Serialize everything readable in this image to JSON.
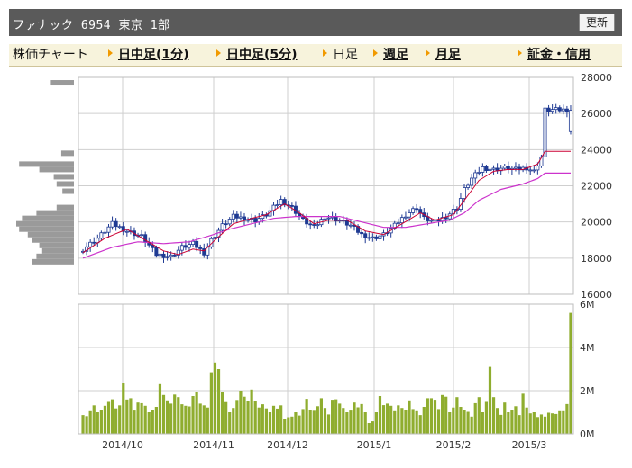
{
  "header": {
    "title": "ファナック 6954 東京 1部",
    "refresh_label": "更新"
  },
  "nav": {
    "chart_label": "株価チャート",
    "items": [
      {
        "label": "日中足(1分)",
        "kind": "link"
      },
      {
        "label": "日中足(5分)",
        "kind": "link"
      },
      {
        "label": "日足",
        "kind": "current"
      },
      {
        "label": "週足",
        "kind": "link"
      },
      {
        "label": "月足",
        "kind": "link"
      },
      {
        "label": "証金・信用",
        "kind": "link"
      }
    ]
  },
  "colors": {
    "candle": "#1f3a93",
    "ma_short": "#cc0033",
    "ma_long": "#cc33cc",
    "volume": "#8fad2f",
    "volume_profile": "#9a9a9a",
    "grid": "#cfcfcf"
  },
  "chart_data": [
    {
      "type": "candlestick",
      "title": "",
      "y_ticks": [
        "28000",
        "26000",
        "24000",
        "22000",
        "20000",
        "18000",
        "16000"
      ],
      "ylim": [
        16000,
        28000
      ],
      "x_ticks": [
        "2014/10",
        "2014/11",
        "2014/12",
        "2015/1",
        "2015/2",
        "2015/3"
      ],
      "close_anchors": [
        [
          0,
          18500
        ],
        [
          4,
          19100
        ],
        [
          8,
          19900
        ],
        [
          12,
          19500
        ],
        [
          16,
          19200
        ],
        [
          20,
          18200
        ],
        [
          24,
          18100
        ],
        [
          27,
          18600
        ],
        [
          30,
          18800
        ],
        [
          33,
          18300
        ],
        [
          35,
          19000
        ],
        [
          38,
          19800
        ],
        [
          41,
          20300
        ],
        [
          44,
          20200
        ],
        [
          47,
          20100
        ],
        [
          50,
          20400
        ],
        [
          54,
          21200
        ],
        [
          57,
          20800
        ],
        [
          60,
          20100
        ],
        [
          63,
          19700
        ],
        [
          66,
          20300
        ],
        [
          70,
          20100
        ],
        [
          73,
          19800
        ],
        [
          76,
          19300
        ],
        [
          79,
          19100
        ],
        [
          82,
          19300
        ],
        [
          85,
          19800
        ],
        [
          88,
          20400
        ],
        [
          91,
          20800
        ],
        [
          93,
          20200
        ],
        [
          96,
          20000
        ],
        [
          99,
          20300
        ],
        [
          102,
          20800
        ],
        [
          104,
          21800
        ],
        [
          106,
          22400
        ],
        [
          109,
          23000
        ],
        [
          112,
          22900
        ],
        [
          115,
          23000
        ],
        [
          118,
          22900
        ],
        [
          121,
          23000
        ],
        [
          123,
          22800
        ],
        [
          125,
          23600
        ],
        [
          126,
          26200
        ]
      ],
      "ma_short_anchors": [
        [
          0,
          18300
        ],
        [
          6,
          19100
        ],
        [
          12,
          19600
        ],
        [
          17,
          19000
        ],
        [
          22,
          18400
        ],
        [
          26,
          18200
        ],
        [
          30,
          18500
        ],
        [
          33,
          18400
        ],
        [
          36,
          19000
        ],
        [
          41,
          19900
        ],
        [
          46,
          20200
        ],
        [
          50,
          20400
        ],
        [
          55,
          21000
        ],
        [
          59,
          20500
        ],
        [
          63,
          19900
        ],
        [
          67,
          20100
        ],
        [
          72,
          20100
        ],
        [
          77,
          19500
        ],
        [
          82,
          19300
        ],
        [
          87,
          19900
        ],
        [
          92,
          20500
        ],
        [
          96,
          20100
        ],
        [
          101,
          20400
        ],
        [
          104,
          21200
        ],
        [
          108,
          22300
        ],
        [
          112,
          22800
        ],
        [
          116,
          22900
        ],
        [
          120,
          22900
        ],
        [
          124,
          23200
        ],
        [
          126,
          23900
        ]
      ],
      "ma_long_anchors": [
        [
          0,
          18000
        ],
        [
          8,
          18600
        ],
        [
          15,
          18900
        ],
        [
          22,
          18800
        ],
        [
          29,
          18900
        ],
        [
          34,
          19200
        ],
        [
          40,
          19600
        ],
        [
          46,
          19900
        ],
        [
          52,
          20200
        ],
        [
          58,
          20300
        ],
        [
          64,
          20300
        ],
        [
          70,
          20300
        ],
        [
          76,
          20000
        ],
        [
          82,
          19700
        ],
        [
          88,
          19700
        ],
        [
          94,
          19900
        ],
        [
          100,
          20100
        ],
        [
          104,
          20500
        ],
        [
          108,
          21200
        ],
        [
          114,
          21800
        ],
        [
          120,
          22100
        ],
        [
          124,
          22400
        ],
        [
          126,
          22700
        ]
      ],
      "volume_profile_levels": [
        [
          27700,
          0.4
        ],
        [
          23800,
          0.22
        ],
        [
          23200,
          0.95
        ],
        [
          22900,
          0.6
        ],
        [
          22500,
          0.35
        ],
        [
          22100,
          0.3
        ],
        [
          21700,
          0.2
        ],
        [
          20800,
          0.3
        ],
        [
          20500,
          0.65
        ],
        [
          20200,
          0.9
        ],
        [
          19900,
          1.0
        ],
        [
          19600,
          0.95
        ],
        [
          19300,
          0.8
        ],
        [
          19000,
          0.72
        ],
        [
          18700,
          0.6
        ],
        [
          18400,
          0.55
        ],
        [
          18100,
          0.65
        ],
        [
          17800,
          0.72
        ]
      ]
    },
    {
      "type": "bar",
      "title": "",
      "y_ticks": [
        "6M",
        "4M",
        "2M",
        "0M"
      ],
      "ylim": [
        0,
        6000000
      ],
      "values": [
        870000,
        820000,
        1050000,
        1320000,
        1000000,
        1120000,
        1300000,
        1480000,
        1600000,
        1180000,
        1320000,
        2350000,
        1590000,
        1650000,
        1080000,
        1450000,
        1420000,
        1300000,
        1000000,
        1120000,
        1250000,
        2300000,
        1800000,
        1550000,
        1400000,
        1820000,
        1700000,
        1370000,
        1300000,
        1270000,
        1750000,
        1950000,
        1400000,
        1320000,
        1220000,
        2850000,
        3300000,
        3000000,
        1950000,
        1470000,
        1000000,
        1200000,
        1570000,
        2000000,
        1720000,
        1500000,
        2050000,
        1500000,
        1220000,
        1370000,
        1180000,
        1000000,
        1300000,
        1170000,
        1320000,
        700000,
        770000,
        800000,
        1000000,
        850000,
        1150000,
        1620000,
        1120000,
        1070000,
        1280000,
        1650000,
        1200000,
        900000,
        1580000,
        1600000,
        1400000,
        1200000,
        1000000,
        1080000,
        1450000,
        1230000,
        1380000,
        1000000,
        500000,
        580000,
        1000000,
        1750000,
        1330000,
        1400000,
        1300000,
        1050000,
        1320000,
        1200000,
        1100000,
        1550000,
        1150000,
        1050000,
        870000,
        1250000,
        1650000,
        1650000,
        1580000,
        1150000,
        1800000,
        1720000,
        1000000,
        1220000,
        1700000,
        1250000,
        1100000,
        1020000,
        800000,
        1420000,
        1700000,
        1000000,
        1480000,
        3100000,
        1700000,
        1200000,
        880000,
        1450000,
        1000000,
        1120000,
        1280000,
        870000,
        1860000,
        1220000,
        950000,
        1000000,
        780000,
        900000,
        800000,
        980000,
        950000,
        920000,
        1050000,
        1050000,
        1380000,
        5600000
      ]
    }
  ]
}
